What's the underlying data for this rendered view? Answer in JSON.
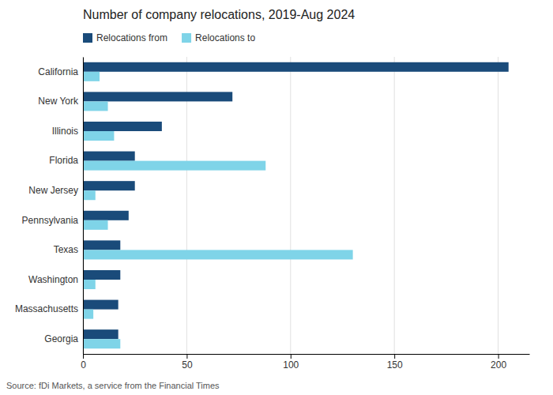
{
  "chart_data": {
    "type": "bar",
    "orientation": "horizontal",
    "title": "Number of company relocations, 2019-Aug 2024",
    "annotations": [
      "Source: fDi Markets, a service from the Financial Times"
    ],
    "categories": [
      "California",
      "New York",
      "Illinois",
      "Florida",
      "New Jersey",
      "Pennsylvania",
      "Texas",
      "Washington",
      "Massachusetts",
      "Georgia"
    ],
    "series": [
      {
        "name": "Relocations from",
        "color": "#1a4b7a",
        "values": [
          205,
          72,
          38,
          25,
          25,
          22,
          18,
          18,
          17,
          17
        ]
      },
      {
        "name": "Relocations to",
        "color": "#7fd4e8",
        "values": [
          8,
          12,
          15,
          88,
          6,
          12,
          130,
          6,
          5,
          18
        ]
      }
    ],
    "xlim": [
      0,
      215
    ],
    "xticks": [
      0,
      50,
      100,
      150,
      200
    ],
    "grid": true,
    "legend": "upper left"
  }
}
